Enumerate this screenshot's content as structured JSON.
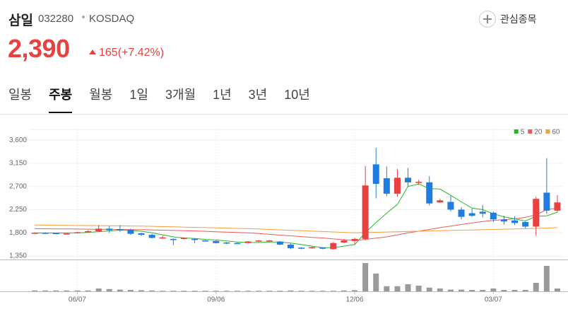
{
  "header": {
    "name": "삼일",
    "code": "032280",
    "market": "KOSDAQ",
    "watch_button": "관심종목",
    "price": "2,390",
    "change": "165(+7.42%)"
  },
  "tabs": [
    "일봉",
    "주봉",
    "월봉",
    "1일",
    "3개월",
    "1년",
    "3년",
    "10년"
  ],
  "active_tab": 1,
  "chart_data": {
    "type": "candlestick",
    "categories": [
      null,
      null,
      null,
      null,
      "06/07",
      null,
      null,
      null,
      null,
      null,
      null,
      null,
      null,
      null,
      null,
      null,
      null,
      "09/06",
      null,
      null,
      null,
      null,
      null,
      null,
      null,
      null,
      null,
      null,
      null,
      null,
      "12/06",
      null,
      null,
      null,
      null,
      null,
      null,
      null,
      null,
      null,
      null,
      null,
      null,
      "03/07",
      null,
      null,
      null,
      null,
      null,
      null
    ],
    "open": [
      1790,
      1800,
      1795,
      1775,
      1790,
      1810,
      1830,
      1880,
      1870,
      1860,
      1790,
      1760,
      1690,
      1680,
      1680,
      1680,
      1650,
      1640,
      1610,
      1600,
      1600,
      1630,
      1640,
      1630,
      1570,
      1510,
      1500,
      1510,
      1480,
      1610,
      1640,
      1680,
      3130,
      2860,
      2560,
      2870,
      2770,
      2780,
      2390,
      2400,
      2250,
      2180,
      2210,
      2190,
      2060,
      2040,
      2010,
      1920,
      2580,
      2230
    ],
    "close": [
      1800,
      1790,
      1790,
      1785,
      1810,
      1830,
      1880,
      1850,
      1860,
      1780,
      1760,
      1700,
      1710,
      1670,
      1700,
      1670,
      1640,
      1600,
      1590,
      1590,
      1630,
      1650,
      1650,
      1570,
      1500,
      1490,
      1520,
      1490,
      1600,
      1650,
      1680,
      2720,
      2750,
      2560,
      2870,
      2780,
      2790,
      2370,
      2430,
      2250,
      2110,
      2130,
      2170,
      2060,
      2020,
      1990,
      1920,
      2460,
      2230,
      2390
    ],
    "high": [
      1810,
      1810,
      1800,
      1795,
      1820,
      1850,
      1950,
      1930,
      1950,
      1880,
      1800,
      1780,
      1740,
      1690,
      1710,
      1690,
      1660,
      1650,
      1620,
      1610,
      1640,
      1660,
      1660,
      1640,
      1590,
      1520,
      1530,
      1520,
      1620,
      1680,
      1700,
      3100,
      3450,
      3090,
      3040,
      3060,
      2830,
      2900,
      2460,
      2520,
      2300,
      2270,
      2340,
      2210,
      2130,
      2120,
      2020,
      2500,
      3250,
      2530
    ],
    "low": [
      1780,
      1785,
      1785,
      1770,
      1785,
      1805,
      1820,
      1800,
      1820,
      1760,
      1740,
      1690,
      1680,
      1560,
      1670,
      1600,
      1630,
      1590,
      1580,
      1580,
      1590,
      1620,
      1630,
      1560,
      1480,
      1480,
      1490,
      1480,
      1470,
      1600,
      1570,
      1650,
      2470,
      2510,
      2500,
      2700,
      2730,
      2330,
      2380,
      2210,
      2060,
      2110,
      2100,
      2010,
      1960,
      1950,
      1890,
      1740,
      2170,
      2200
    ],
    "up_color": "#e8413f",
    "down_color": "#1f7ce0",
    "moving_averages": [
      {
        "name": "5",
        "color": "#27b629",
        "values": [
          1795,
          1795,
          1795,
          1795,
          1798,
          1806,
          1822,
          1835,
          1850,
          1845,
          1830,
          1800,
          1760,
          1720,
          1700,
          1690,
          1670,
          1660,
          1640,
          1620,
          1610,
          1610,
          1620,
          1620,
          1600,
          1570,
          1540,
          1510,
          1510,
          1540,
          1570,
          1800,
          2000,
          2180,
          2350,
          2700,
          2750,
          2660,
          2650,
          2530,
          2400,
          2280,
          2250,
          2170,
          2110,
          2070,
          2030,
          2120,
          2130,
          2200
        ]
      },
      {
        "name": "20",
        "color": "#ee5a5a",
        "values": [
          1880,
          1878,
          1876,
          1874,
          1872,
          1870,
          1868,
          1866,
          1864,
          1862,
          1860,
          1855,
          1850,
          1845,
          1840,
          1835,
          1828,
          1820,
          1813,
          1806,
          1800,
          1785,
          1770,
          1755,
          1740,
          1725,
          1710,
          1700,
          1680,
          1665,
          1650,
          1670,
          1695,
          1720,
          1760,
          1800,
          1830,
          1865,
          1900,
          1930,
          1960,
          1990,
          2020,
          2040,
          2055,
          2070,
          2100,
          2150,
          2250,
          2280
        ]
      },
      {
        "name": "60",
        "color": "#f0a040",
        "values": [
          1950,
          1948,
          1946,
          1944,
          1942,
          1940,
          1938,
          1936,
          1934,
          1932,
          1930,
          1925,
          1920,
          1915,
          1910,
          1905,
          1900,
          1895,
          1890,
          1885,
          1880,
          1872,
          1864,
          1856,
          1848,
          1840,
          1832,
          1824,
          1816,
          1808,
          1800,
          1805,
          1810,
          1815,
          1820,
          1825,
          1830,
          1835,
          1840,
          1845,
          1850,
          1855,
          1860,
          1865,
          1870,
          1875,
          1880,
          1885,
          1890,
          1900
        ]
      }
    ],
    "legend": "top-right",
    "volume": {
      "color": "#9a9a9a",
      "values": [
        3,
        3,
        3,
        3,
        3,
        3,
        10,
        8,
        6,
        5,
        4,
        3,
        2,
        2,
        2,
        2,
        2,
        2,
        2,
        2,
        2,
        2,
        2,
        2,
        3,
        2,
        2,
        2,
        2,
        3,
        4,
        100,
        63,
        18,
        18,
        25,
        20,
        13,
        10,
        6,
        6,
        5,
        5,
        10,
        5,
        5,
        5,
        30,
        90,
        10
      ]
    },
    "ylim": [
      1280,
      3810
    ],
    "yticks": [
      {
        "value": 1350,
        "label": "1,350"
      },
      {
        "value": 1800,
        "label": "1,800"
      },
      {
        "value": 2250,
        "label": "2,250"
      },
      {
        "value": 2700,
        "label": "2,700"
      },
      {
        "value": 3150,
        "label": "3,150"
      },
      {
        "value": 3600,
        "label": "3,600"
      }
    ],
    "grid": true
  }
}
